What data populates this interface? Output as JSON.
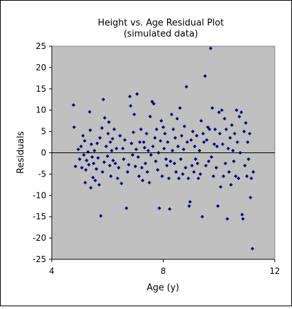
{
  "chart_data": {
    "type": "scatter",
    "title": "Height vs. Age Residual Plot",
    "subtitle": "(simulated data)",
    "xlabel": "Age (y)",
    "ylabel": "Residuals",
    "xlim": [
      4,
      12
    ],
    "ylim": [
      -25,
      25
    ],
    "xticks": [
      4,
      8,
      12
    ],
    "yticks": [
      25,
      20,
      15,
      10,
      5,
      0,
      -5,
      -10,
      -15,
      -20,
      -25
    ],
    "zero_line": true,
    "grid": false,
    "plot_background": "#c0c0c0",
    "marker_color": "#000080",
    "marker": "diamond",
    "series": [
      {
        "points": [
          [
            4.78,
            11.2
          ],
          [
            4.8,
            6.0
          ],
          [
            4.85,
            -3.2
          ],
          [
            4.95,
            0.8
          ],
          [
            5.0,
            -1.5
          ],
          [
            5.05,
            1.5
          ],
          [
            5.08,
            -3.5
          ],
          [
            5.12,
            4.0
          ],
          [
            5.15,
            -0.5
          ],
          [
            5.18,
            2.8
          ],
          [
            5.2,
            -7.0
          ],
          [
            5.22,
            -4.0
          ],
          [
            5.25,
            -1.8
          ],
          [
            5.3,
            0.2
          ],
          [
            5.33,
            -2.8
          ],
          [
            5.36,
            9.6
          ],
          [
            5.38,
            5.3
          ],
          [
            5.4,
            -8.2
          ],
          [
            5.42,
            2.0
          ],
          [
            5.45,
            -1.0
          ],
          [
            5.48,
            -5.8
          ],
          [
            5.5,
            -2.5
          ],
          [
            5.53,
            0.5
          ],
          [
            5.56,
            -6.5
          ],
          [
            5.6,
            -3.8
          ],
          [
            5.63,
            2.2
          ],
          [
            5.66,
            -1.2
          ],
          [
            5.7,
            -7.5
          ],
          [
            5.73,
            3.5
          ],
          [
            5.76,
            -14.8
          ],
          [
            5.8,
            5.8
          ],
          [
            5.82,
            -4.5
          ],
          [
            5.85,
            12.5
          ],
          [
            5.88,
            -2.2
          ],
          [
            5.9,
            8.2
          ],
          [
            5.95,
            1.5
          ],
          [
            6.0,
            -0.8
          ],
          [
            6.02,
            4.5
          ],
          [
            6.05,
            7.2
          ],
          [
            6.08,
            -3.0
          ],
          [
            6.1,
            2.5
          ],
          [
            6.12,
            -5.5
          ],
          [
            6.15,
            0.5
          ],
          [
            6.18,
            3.3
          ],
          [
            6.2,
            -1.8
          ],
          [
            6.24,
            5.5
          ],
          [
            6.28,
            -2.5
          ],
          [
            6.32,
            1.0
          ],
          [
            6.36,
            -6.0
          ],
          [
            6.4,
            -3.5
          ],
          [
            6.45,
            4.0
          ],
          [
            6.5,
            -7.2
          ],
          [
            6.55,
            1.0
          ],
          [
            6.58,
            -1.5
          ],
          [
            6.62,
            3.0
          ],
          [
            6.68,
            -13.0
          ],
          [
            6.72,
            -4.5
          ],
          [
            6.76,
            -2.8
          ],
          [
            6.8,
            13.2
          ],
          [
            6.83,
            11.0
          ],
          [
            6.86,
            2.2
          ],
          [
            6.9,
            -0.5
          ],
          [
            6.93,
            4.8
          ],
          [
            6.96,
            9.0
          ],
          [
            7.0,
            -3.2
          ],
          [
            7.03,
            0.8
          ],
          [
            7.06,
            13.8
          ],
          [
            7.1,
            -1.0
          ],
          [
            7.13,
            -5.5
          ],
          [
            7.16,
            2.5
          ],
          [
            7.2,
            5.5
          ],
          [
            7.23,
            -3.5
          ],
          [
            7.26,
            -6.5
          ],
          [
            7.3,
            2.5
          ],
          [
            7.33,
            1.2
          ],
          [
            7.36,
            -2.5
          ],
          [
            7.4,
            4.5
          ],
          [
            7.43,
            -4.5
          ],
          [
            7.46,
            0.5
          ],
          [
            7.5,
            -7.0
          ],
          [
            7.53,
            8.5
          ],
          [
            7.56,
            -0.5
          ],
          [
            7.6,
            12.0
          ],
          [
            7.63,
            1.5
          ],
          [
            7.66,
            11.5
          ],
          [
            7.7,
            3.5
          ],
          [
            7.73,
            -2.0
          ],
          [
            7.76,
            5.5
          ],
          [
            7.8,
            -4.0
          ],
          [
            7.83,
            0.0
          ],
          [
            7.86,
            -13.0
          ],
          [
            7.9,
            2.8
          ],
          [
            7.93,
            7.5
          ],
          [
            7.96,
            -5.5
          ],
          [
            8.0,
            6.0
          ],
          [
            8.03,
            1.0
          ],
          [
            8.06,
            4.5
          ],
          [
            8.1,
            -1.5
          ],
          [
            8.13,
            -3.0
          ],
          [
            8.16,
            2.5
          ],
          [
            8.2,
            -6.0
          ],
          [
            8.23,
            -13.2
          ],
          [
            8.26,
            -2.0
          ],
          [
            8.3,
            9.0
          ],
          [
            8.33,
            0.5
          ],
          [
            8.36,
            5.5
          ],
          [
            8.4,
            -2.5
          ],
          [
            8.43,
            3.5
          ],
          [
            8.46,
            -4.5
          ],
          [
            8.5,
            8.0
          ],
          [
            8.53,
            1.5
          ],
          [
            8.56,
            -6.0
          ],
          [
            8.6,
            10.5
          ],
          [
            8.63,
            -1.5
          ],
          [
            8.66,
            4.0
          ],
          [
            8.7,
            -5.0
          ],
          [
            8.73,
            0.8
          ],
          [
            8.76,
            6.2
          ],
          [
            8.8,
            -3.5
          ],
          [
            8.83,
            15.5
          ],
          [
            8.86,
            2.5
          ],
          [
            8.9,
            -6.0
          ],
          [
            8.93,
            -12.5
          ],
          [
            8.96,
            -11.5
          ],
          [
            9.0,
            3.0
          ],
          [
            9.03,
            -3.0
          ],
          [
            9.06,
            5.0
          ],
          [
            9.1,
            -4.5
          ],
          [
            9.13,
            1.5
          ],
          [
            9.16,
            -1.5
          ],
          [
            9.2,
            4.0
          ],
          [
            9.23,
            -2.5
          ],
          [
            9.26,
            -6.0
          ],
          [
            9.3,
            0.5
          ],
          [
            9.33,
            -5.0
          ],
          [
            9.36,
            7.5
          ],
          [
            9.4,
            -15.0
          ],
          [
            9.43,
            4.5
          ],
          [
            9.46,
            2.5
          ],
          [
            9.5,
            18.0
          ],
          [
            9.53,
            -3.0
          ],
          [
            9.56,
            3.0
          ],
          [
            9.6,
            6.0
          ],
          [
            9.63,
            -2.0
          ],
          [
            9.66,
            5.5
          ],
          [
            9.7,
            24.5
          ],
          [
            9.73,
            -1.0
          ],
          [
            9.76,
            10.5
          ],
          [
            9.8,
            -5.5
          ],
          [
            9.83,
            2.0
          ],
          [
            9.86,
            5.5
          ],
          [
            9.9,
            -3.5
          ],
          [
            9.93,
            1.5
          ],
          [
            9.96,
            -12.5
          ],
          [
            10.0,
            9.5
          ],
          [
            10.03,
            4.5
          ],
          [
            10.06,
            -8.0
          ],
          [
            10.1,
            10.0
          ],
          [
            10.13,
            2.0
          ],
          [
            10.16,
            -5.5
          ],
          [
            10.2,
            8.0
          ],
          [
            10.23,
            -2.5
          ],
          [
            10.26,
            5.5
          ],
          [
            10.3,
            -15.5
          ],
          [
            10.33,
            1.0
          ],
          [
            10.36,
            -4.5
          ],
          [
            10.4,
            3.5
          ],
          [
            10.43,
            -7.5
          ],
          [
            10.46,
            6.5
          ],
          [
            10.5,
            0.5
          ],
          [
            10.53,
            -2.0
          ],
          [
            10.56,
            4.5
          ],
          [
            10.6,
            -5.5
          ],
          [
            10.63,
            10.0
          ],
          [
            10.66,
            2.5
          ],
          [
            10.7,
            -6.0
          ],
          [
            10.73,
            8.5
          ],
          [
            10.76,
            0.0
          ],
          [
            10.8,
            9.5
          ],
          [
            10.83,
            -14.5
          ],
          [
            10.86,
            -15.5
          ],
          [
            10.9,
            5.0
          ],
          [
            10.93,
            -3.0
          ],
          [
            10.96,
            7.0
          ],
          [
            11.0,
            -5.5
          ],
          [
            11.03,
            2.5
          ],
          [
            11.06,
            -1.5
          ],
          [
            11.1,
            4.5
          ],
          [
            11.13,
            -10.5
          ],
          [
            11.16,
            -6.0
          ],
          [
            11.2,
            -22.5
          ],
          [
            11.23,
            -4.5
          ]
        ]
      }
    ]
  }
}
